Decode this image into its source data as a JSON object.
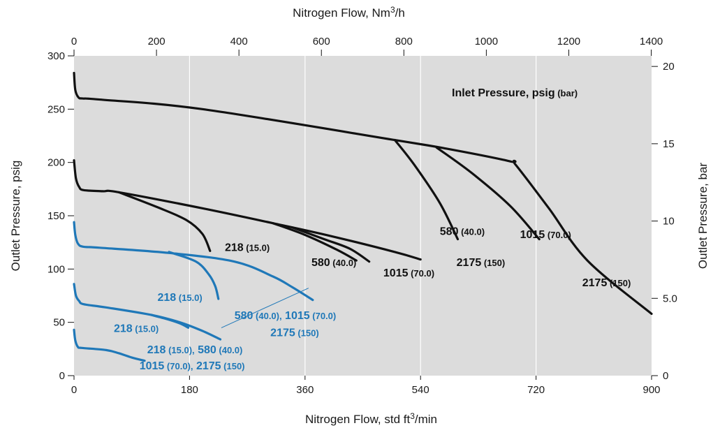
{
  "chart_data": {
    "type": "line",
    "title": "",
    "xlabel": "Nitrogen Flow, std ft3/min",
    "xlabel_parts": {
      "pre": "Nitrogen Flow, std ft",
      "sup": "3",
      "post": "/min"
    },
    "x2label_parts": {
      "pre": "Nitrogen Flow, Nm",
      "sup": "3",
      "post": "/h"
    },
    "ylabel": "Outlet Pressure, psig",
    "y2label": "Outlet Pressure, bar",
    "xlim": [
      0,
      900
    ],
    "ylim": [
      0,
      300
    ],
    "x_ticks": [
      "0",
      "180",
      "360",
      "540",
      "720",
      "900"
    ],
    "x_tick_values": [
      0,
      180,
      360,
      540,
      720,
      900
    ],
    "x2_ticks": [
      "0",
      "200",
      "400",
      "600",
      "800",
      "1000",
      "1200",
      "1400"
    ],
    "x2_tick_values": [
      0,
      200,
      400,
      600,
      800,
      1000,
      1200,
      1400
    ],
    "y_ticks": [
      "0",
      "50",
      "100",
      "150",
      "200",
      "250",
      "300"
    ],
    "y_tick_values": [
      0,
      50,
      100,
      150,
      200,
      250,
      300
    ],
    "y2_ticks": [
      "0",
      "5.0",
      "10",
      "15",
      "20"
    ],
    "y2_tick_values": [
      0,
      5,
      10,
      15,
      20
    ],
    "grid": true,
    "legend_title": {
      "main": "Inlet Pressure, psig",
      "unit": "(bar)"
    },
    "colors": {
      "black": "#111111",
      "blue": "#1f78b8",
      "plot_bg": "#dcdcdc",
      "grid": "#ffffff"
    },
    "series": [
      {
        "name": "k1_main",
        "color": "black",
        "points": [
          [
            0,
            284
          ],
          [
            2,
            268
          ],
          [
            7,
            261
          ],
          [
            14,
            260
          ],
          [
            40,
            259
          ],
          [
            200,
            250
          ],
          [
            500,
            221
          ],
          [
            580,
            213
          ],
          [
            680,
            201
          ],
          [
            688,
            198
          ],
          [
            740,
            157
          ],
          [
            800,
            108
          ],
          [
            900,
            58
          ]
        ]
      },
      {
        "name": "k1_580",
        "color": "black",
        "points": [
          [
            500,
            221
          ],
          [
            530,
            198
          ],
          [
            570,
            162
          ],
          [
            598,
            128
          ]
        ]
      },
      {
        "name": "k1_1015",
        "color": "black",
        "points": [
          [
            565,
            214
          ],
          [
            620,
            190
          ],
          [
            680,
            159
          ],
          [
            725,
            128
          ]
        ]
      },
      {
        "name": "k2_main",
        "color": "black",
        "points": [
          [
            0,
            202
          ],
          [
            3,
            185
          ],
          [
            8,
            177
          ],
          [
            15,
            174
          ],
          [
            45,
            173
          ],
          [
            70,
            172
          ],
          [
            200,
            157
          ],
          [
            310,
            143
          ],
          [
            400,
            131
          ],
          [
            500,
            116
          ],
          [
            540,
            109
          ]
        ]
      },
      {
        "name": "k2_218",
        "color": "black",
        "points": [
          [
            70,
            172
          ],
          [
            130,
            158
          ],
          [
            175,
            146
          ],
          [
            200,
            133
          ],
          [
            212,
            117
          ]
        ]
      },
      {
        "name": "k2_580",
        "color": "black",
        "points": [
          [
            310,
            143
          ],
          [
            360,
            132
          ],
          [
            410,
            118
          ],
          [
            440,
            108
          ]
        ]
      },
      {
        "name": "k2_1015",
        "color": "black",
        "points": [
          [
            340,
            139
          ],
          [
            390,
            128
          ],
          [
            430,
            119
          ],
          [
            460,
            107
          ]
        ]
      },
      {
        "name": "b1_main",
        "color": "blue",
        "points": [
          [
            0,
            144
          ],
          [
            2,
            132
          ],
          [
            6,
            124
          ],
          [
            14,
            121
          ],
          [
            40,
            120
          ],
          [
            150,
            115
          ],
          [
            250,
            107
          ],
          [
            310,
            93
          ],
          [
            340,
            83
          ],
          [
            372,
            71
          ]
        ]
      },
      {
        "name": "b1_218",
        "color": "blue",
        "points": [
          [
            148,
            116
          ],
          [
            190,
            107
          ],
          [
            210,
            95
          ],
          [
            220,
            84
          ],
          [
            225,
            72
          ]
        ]
      },
      {
        "name": "b2_main",
        "color": "blue",
        "points": [
          [
            0,
            86
          ],
          [
            3,
            75
          ],
          [
            8,
            70
          ],
          [
            15,
            67
          ],
          [
            50,
            64
          ],
          [
            120,
            57
          ],
          [
            165,
            50
          ],
          [
            200,
            42
          ],
          [
            228,
            34
          ]
        ]
      },
      {
        "name": "b2_218",
        "color": "blue",
        "points": [
          [
            120,
            57
          ],
          [
            145,
            53
          ],
          [
            165,
            49
          ],
          [
            178,
            45
          ]
        ]
      },
      {
        "name": "b3_main",
        "color": "blue",
        "points": [
          [
            0,
            43
          ],
          [
            2,
            33
          ],
          [
            6,
            27
          ],
          [
            12,
            26
          ],
          [
            50,
            24
          ],
          [
            70,
            21
          ],
          [
            90,
            17
          ],
          [
            110,
            14
          ]
        ]
      },
      {
        "name": "leader",
        "color": "blue",
        "width": 1,
        "points": [
          [
            230,
            45
          ],
          [
            365,
            82
          ]
        ]
      }
    ],
    "labels": [
      {
        "name": "label-black-218",
        "color": "black",
        "parts": [
          "218",
          "(15.0)"
        ],
        "at": [
          235,
          117
        ]
      },
      {
        "name": "label-black-580-low",
        "color": "black",
        "parts": [
          "580",
          "(40.0)"
        ],
        "at": [
          370,
          103
        ]
      },
      {
        "name": "label-black-1015-low",
        "color": "black",
        "parts": [
          "1015",
          "(70.0)"
        ],
        "at": [
          482,
          93
        ]
      },
      {
        "name": "label-black-2175-low",
        "color": "black",
        "parts": [
          "2175",
          "(150)"
        ],
        "at": [
          596,
          103
        ]
      },
      {
        "name": "label-black-580-high",
        "color": "black",
        "parts": [
          "580",
          "(40.0)"
        ],
        "at": [
          570,
          132
        ]
      },
      {
        "name": "label-black-1015-high",
        "color": "black",
        "parts": [
          "1015",
          "(70.0)"
        ],
        "at": [
          695,
          129
        ]
      },
      {
        "name": "label-black-2175-high",
        "color": "black",
        "parts": [
          "2175",
          "(150)"
        ],
        "at": [
          792,
          84
        ]
      },
      {
        "name": "label-blue-218-a",
        "color": "blue",
        "parts": [
          "218",
          "(15.0)"
        ],
        "at": [
          130,
          70
        ]
      },
      {
        "name": "label-blue-580-1015",
        "color": "blue",
        "parts": [
          "580",
          "(40.0),",
          "1015",
          "(70.0)"
        ],
        "at": [
          250,
          53
        ]
      },
      {
        "name": "label-blue-2175",
        "color": "blue",
        "parts": [
          "2175",
          "(150)"
        ],
        "at": [
          306,
          37
        ]
      },
      {
        "name": "label-blue-218-b",
        "color": "blue",
        "parts": [
          "218",
          "(15.0)"
        ],
        "at": [
          62,
          41
        ]
      },
      {
        "name": "label-blue-218-580",
        "color": "blue",
        "parts": [
          "218",
          "(15.0),",
          "580",
          "(40.0)"
        ],
        "at": [
          114,
          21
        ]
      },
      {
        "name": "label-blue-1015-2175",
        "color": "blue",
        "parts": [
          "1015",
          "(70.0),",
          "2175",
          "(150)"
        ],
        "at": [
          102,
          6
        ]
      }
    ]
  }
}
